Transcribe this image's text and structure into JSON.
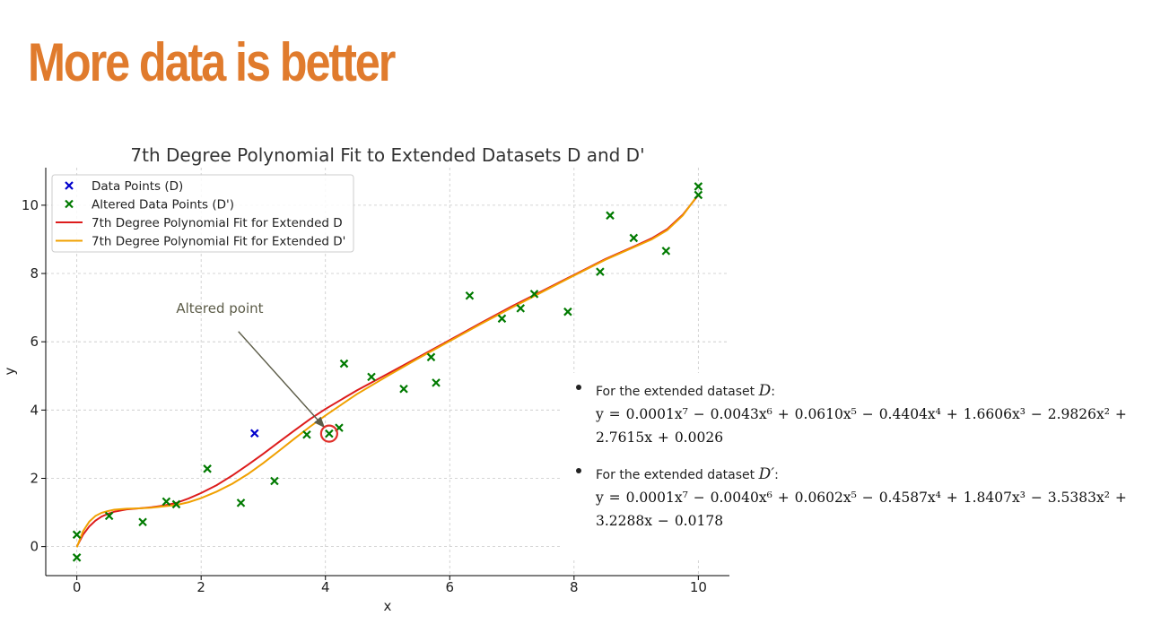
{
  "slide": {
    "title": "More data is better",
    "title_color": "#e07b2d"
  },
  "equations": [
    {
      "intro": "For the extended dataset",
      "dataset_symbol": "D",
      "suffix": ":",
      "equation": "y = 0.0001x⁷ − 0.0043x⁶ + 0.0610x⁵ − 0.4404x⁴ + 1.6606x³ − 2.9826x² + 2.7615x + 0.0026"
    },
    {
      "intro": "For the extended dataset",
      "dataset_symbol": "D′",
      "suffix": ":",
      "equation": "y = 0.0001x⁷ − 0.0040x⁶ + 0.0602x⁵ − 0.4587x⁴ + 1.8407x³ − 3.5383x² + 3.2288x − 0.0178"
    }
  ],
  "chart_data": {
    "type": "scatter",
    "title": "7th Degree Polynomial Fit to Extended Datasets D and D'",
    "xlabel": "x",
    "ylabel": "y",
    "xlim": [
      -0.5,
      10.5
    ],
    "ylim": [
      -0.85,
      11.1
    ],
    "xticks": [
      0,
      2,
      4,
      6,
      8,
      10
    ],
    "yticks": [
      0,
      2,
      4,
      6,
      8,
      10
    ],
    "grid": true,
    "legend_position": "top-left",
    "series": [
      {
        "name": "Data Points (D)",
        "kind": "scatter",
        "marker": "x",
        "color": "#0000cc",
        "points": [
          [
            2.86,
            3.32
          ]
        ]
      },
      {
        "name": "Altered Data Points (D')",
        "kind": "scatter",
        "marker": "x",
        "color": "#007a00",
        "points": [
          [
            0.0,
            0.35
          ],
          [
            0.0,
            -0.32
          ],
          [
            0.52,
            0.9
          ],
          [
            1.06,
            0.72
          ],
          [
            1.44,
            1.32
          ],
          [
            1.6,
            1.24
          ],
          [
            2.1,
            2.28
          ],
          [
            2.64,
            1.28
          ],
          [
            3.18,
            1.92
          ],
          [
            3.7,
            3.28
          ],
          [
            4.06,
            3.31
          ],
          [
            4.22,
            3.48
          ],
          [
            4.3,
            5.36
          ],
          [
            4.74,
            4.97
          ],
          [
            5.26,
            4.62
          ],
          [
            5.7,
            5.55
          ],
          [
            5.78,
            4.8
          ],
          [
            6.32,
            7.35
          ],
          [
            6.84,
            6.68
          ],
          [
            7.14,
            6.98
          ],
          [
            7.36,
            7.4
          ],
          [
            7.9,
            6.88
          ],
          [
            8.42,
            8.05
          ],
          [
            8.58,
            9.7
          ],
          [
            8.96,
            9.04
          ],
          [
            9.48,
            8.66
          ],
          [
            10.0,
            10.55
          ],
          [
            10.0,
            10.3
          ]
        ]
      },
      {
        "name": "7th Degree Polynomial Fit for Extended D",
        "kind": "line",
        "color": "#dd1c1c",
        "x": [
          0,
          0.1,
          0.2,
          0.3,
          0.4,
          0.5,
          0.6,
          0.8,
          1.0,
          1.2,
          1.4,
          1.6,
          1.8,
          2.0,
          2.25,
          2.5,
          2.75,
          3.0,
          3.25,
          3.5,
          3.75,
          4.0,
          4.5,
          5.0,
          5.5,
          6.0,
          6.5,
          7.0,
          7.5,
          8.0,
          8.5,
          9.0,
          9.25,
          9.5,
          9.75,
          10.0
        ],
        "y": [
          0.0,
          0.35,
          0.59,
          0.76,
          0.88,
          0.96,
          1.02,
          1.09,
          1.12,
          1.15,
          1.2,
          1.28,
          1.41,
          1.57,
          1.8,
          2.08,
          2.39,
          2.72,
          3.06,
          3.4,
          3.73,
          4.03,
          4.57,
          5.06,
          5.55,
          6.05,
          6.55,
          7.04,
          7.5,
          7.96,
          8.42,
          8.82,
          9.03,
          9.3,
          9.72,
          10.3
        ]
      },
      {
        "name": "7th Degree Polynomial Fit for Extended D'",
        "kind": "line",
        "color": "#f0a000",
        "x": [
          0,
          0.1,
          0.2,
          0.3,
          0.4,
          0.5,
          0.6,
          0.8,
          1.0,
          1.2,
          1.4,
          1.6,
          1.8,
          2.0,
          2.25,
          2.5,
          2.75,
          3.0,
          3.25,
          3.5,
          3.75,
          4.0,
          4.5,
          5.0,
          5.5,
          6.0,
          6.5,
          7.0,
          7.5,
          8.0,
          8.5,
          9.0,
          9.25,
          9.5,
          9.75,
          10.0
        ],
        "y": [
          -0.02,
          0.45,
          0.73,
          0.9,
          0.99,
          1.04,
          1.08,
          1.11,
          1.12,
          1.14,
          1.18,
          1.22,
          1.3,
          1.42,
          1.61,
          1.84,
          2.12,
          2.45,
          2.8,
          3.16,
          3.51,
          3.84,
          4.46,
          5.0,
          5.52,
          6.02,
          6.52,
          7.0,
          7.47,
          7.94,
          8.4,
          8.8,
          9.0,
          9.27,
          9.7,
          10.32
        ]
      }
    ],
    "annotations": [
      {
        "text": "Altered point",
        "color": "#5c5c48",
        "text_at": [
          2.3,
          6.85
        ],
        "arrow_from": [
          2.6,
          6.3
        ],
        "arrow_to": [
          3.98,
          3.5
        ],
        "circle_at": [
          4.06,
          3.31
        ],
        "circle_color": "#e0302a"
      }
    ]
  }
}
